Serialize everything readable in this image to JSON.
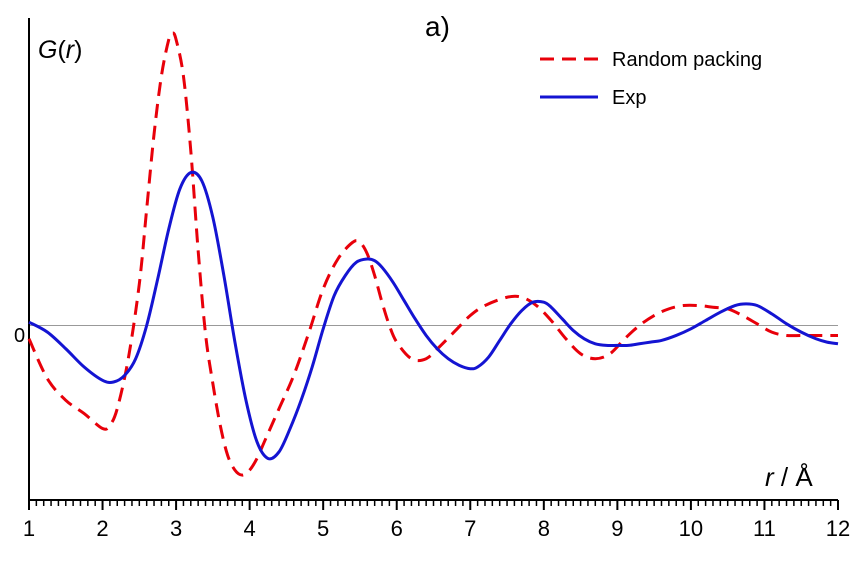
{
  "chart_data": {
    "type": "line",
    "panel_label": "a)",
    "ylabel_main": "G",
    "ylabel_open": "(",
    "ylabel_var": "r",
    "ylabel_close": ")",
    "xlabel_var": "r",
    "xlabel_unit": " / Å",
    "zero_label": "0",
    "xlim": [
      1,
      12
    ],
    "ylim": [
      -1.05,
      1.85
    ],
    "xticks": [
      "1",
      "2",
      "3",
      "4",
      "5",
      "6",
      "7",
      "8",
      "9",
      "10",
      "11",
      "12"
    ],
    "legend_position": "top-right",
    "grid": false,
    "colors": {
      "random": "#e8000a",
      "exp": "#1414d2",
      "axis": "#000000",
      "zero_line": "#999999"
    },
    "series": [
      {
        "name": "Random packing",
        "style": "dashed",
        "x": [
          1.0,
          1.25,
          1.5,
          1.75,
          2.0,
          2.1,
          2.2,
          2.35,
          2.5,
          2.6,
          2.7,
          2.8,
          2.9,
          2.95,
          3.0,
          3.1,
          3.2,
          3.3,
          3.4,
          3.5,
          3.6,
          3.7,
          3.8,
          3.9,
          4.0,
          4.1,
          4.2,
          4.4,
          4.6,
          4.8,
          5.0,
          5.2,
          5.4,
          5.5,
          5.6,
          5.7,
          5.8,
          5.9,
          6.0,
          6.2,
          6.4,
          6.6,
          6.8,
          7.0,
          7.2,
          7.5,
          7.7,
          7.9,
          8.1,
          8.3,
          8.5,
          8.7,
          8.9,
          9.1,
          9.3,
          9.5,
          9.7,
          9.9,
          10.1,
          10.3,
          10.5,
          10.7,
          10.9,
          11.1,
          11.3,
          11.5,
          11.7,
          11.9,
          12.0
        ],
        "y": [
          -0.08,
          -0.32,
          -0.45,
          -0.53,
          -0.62,
          -0.6,
          -0.5,
          -0.2,
          0.25,
          0.7,
          1.15,
          1.5,
          1.72,
          1.76,
          1.72,
          1.5,
          1.05,
          0.45,
          -0.05,
          -0.35,
          -0.6,
          -0.78,
          -0.87,
          -0.9,
          -0.87,
          -0.8,
          -0.7,
          -0.5,
          -0.3,
          -0.05,
          0.22,
          0.4,
          0.5,
          0.5,
          0.43,
          0.3,
          0.14,
          0.0,
          -0.1,
          -0.2,
          -0.2,
          -0.12,
          -0.03,
          0.06,
          0.12,
          0.17,
          0.17,
          0.12,
          0.03,
          -0.08,
          -0.17,
          -0.2,
          -0.17,
          -0.08,
          0.0,
          0.06,
          0.1,
          0.12,
          0.12,
          0.11,
          0.1,
          0.06,
          0.01,
          -0.04,
          -0.06,
          -0.06,
          -0.06,
          -0.06,
          -0.06
        ]
      },
      {
        "name": "Exp",
        "style": "solid",
        "x": [
          1.0,
          1.25,
          1.5,
          1.75,
          2.0,
          2.15,
          2.3,
          2.45,
          2.6,
          2.75,
          2.9,
          3.05,
          3.2,
          3.35,
          3.5,
          3.65,
          3.8,
          3.95,
          4.1,
          4.25,
          4.4,
          4.55,
          4.7,
          4.85,
          5.0,
          5.15,
          5.3,
          5.45,
          5.6,
          5.7,
          5.8,
          5.95,
          6.1,
          6.25,
          6.4,
          6.55,
          6.7,
          6.85,
          7.0,
          7.1,
          7.25,
          7.4,
          7.55,
          7.7,
          7.85,
          8.0,
          8.1,
          8.25,
          8.4,
          8.55,
          8.7,
          8.85,
          9.0,
          9.15,
          9.3,
          9.45,
          9.6,
          9.8,
          10.0,
          10.2,
          10.4,
          10.6,
          10.75,
          10.9,
          11.1,
          11.3,
          11.5,
          11.7,
          11.85,
          12.0
        ],
        "y": [
          0.02,
          -0.04,
          -0.14,
          -0.25,
          -0.33,
          -0.34,
          -0.3,
          -0.2,
          0.0,
          0.28,
          0.58,
          0.82,
          0.92,
          0.87,
          0.65,
          0.3,
          -0.1,
          -0.45,
          -0.7,
          -0.8,
          -0.76,
          -0.62,
          -0.45,
          -0.25,
          -0.02,
          0.18,
          0.3,
          0.38,
          0.4,
          0.39,
          0.35,
          0.26,
          0.15,
          0.04,
          -0.06,
          -0.14,
          -0.2,
          -0.24,
          -0.26,
          -0.25,
          -0.19,
          -0.09,
          0.01,
          0.09,
          0.14,
          0.14,
          0.11,
          0.04,
          -0.03,
          -0.08,
          -0.11,
          -0.12,
          -0.12,
          -0.12,
          -0.11,
          -0.1,
          -0.09,
          -0.06,
          -0.02,
          0.03,
          0.08,
          0.12,
          0.13,
          0.12,
          0.07,
          0.01,
          -0.04,
          -0.08,
          -0.1,
          -0.11
        ]
      }
    ]
  }
}
